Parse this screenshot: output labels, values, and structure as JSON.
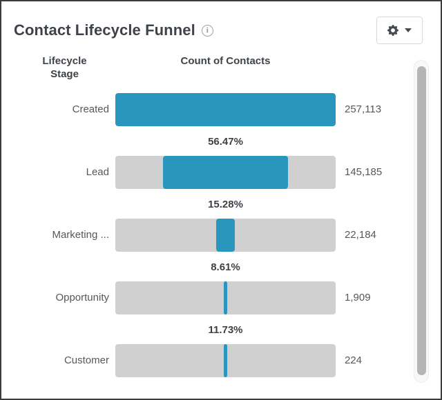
{
  "header": {
    "title": "Contact Lifecycle Funnel",
    "info_icon": "info-icon",
    "settings_button": {
      "icons": [
        "gear-icon",
        "caret-down-icon"
      ]
    }
  },
  "columns": {
    "stage": "Lifecycle Stage",
    "count": "Count of Contacts"
  },
  "rows": [
    {
      "stage": "Created",
      "value": "257,113",
      "pct": "",
      "width_pct": 100
    },
    {
      "stage": "Lead",
      "value": "145,185",
      "pct": "56.47%",
      "width_pct": 56.47
    },
    {
      "stage": "Marketing ...",
      "value": "22,184",
      "pct": "15.28%",
      "width_pct": 8.63
    },
    {
      "stage": "Opportunity",
      "value": "1,909",
      "pct": "8.61%",
      "width_pct": 0.74
    },
    {
      "stage": "Customer",
      "value": "224",
      "pct": "11.73%",
      "width_pct": 0.09
    }
  ],
  "chart_data": {
    "type": "bar",
    "subtype": "funnel",
    "title": "Contact Lifecycle Funnel",
    "xlabel": "Count of Contacts",
    "ylabel": "Lifecycle Stage",
    "categories": [
      "Created",
      "Lead",
      "Marketing ...",
      "Opportunity",
      "Customer"
    ],
    "values": [
      257113,
      145185,
      22184,
      1909,
      224
    ],
    "value_labels": [
      "257,113",
      "145,185",
      "22,184",
      "1,909",
      "224"
    ],
    "conversion_rates": [
      null,
      "56.47%",
      "15.28%",
      "8.61%",
      "11.73%"
    ],
    "bar_width_pct_of_first_stage": [
      100,
      56.47,
      8.63,
      0.74,
      0.09
    ],
    "bar_alignment": "center",
    "colors": {
      "bar_fill": "#2a96be",
      "bar_track": "#d0d0d0",
      "label_text": "#54585c",
      "pct_text": "#3d4146"
    },
    "legend": "none",
    "grid": "off"
  }
}
